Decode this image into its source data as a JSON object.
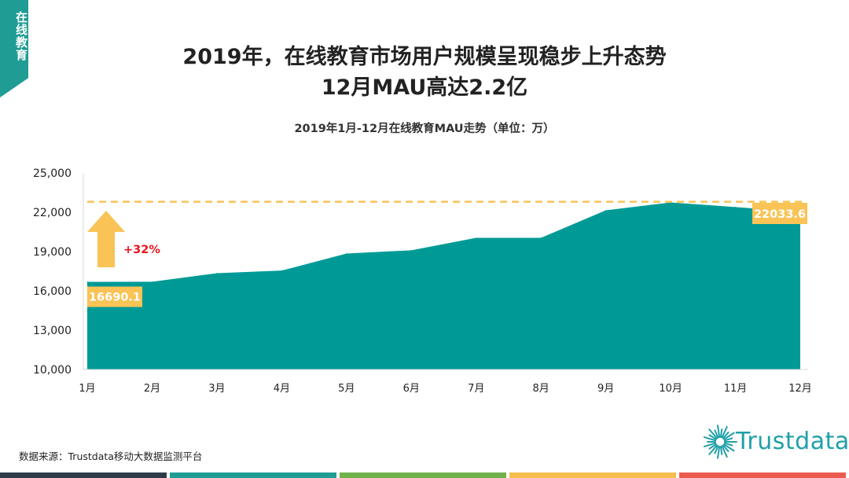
{
  "side_tab": "在线教育",
  "title_line1": "2019年，在线教育市场用户规模呈现稳步上升态势",
  "title_line2": "12月MAU高达2.2亿",
  "source": "数据来源：Trustdata移动大数据监测平台",
  "logo_text": "Trustdata",
  "colors": {
    "area": "#009a96",
    "accent": "#f9c356",
    "growth_text": "#e8141c",
    "side_tab": "#1f9c93",
    "bottom_bar": [
      "#2f3b48",
      "#1f9c93",
      "#6fb24c",
      "#f6be4d",
      "#ec5b4f"
    ]
  },
  "chart_data": {
    "type": "area",
    "title": "2019年1月-12月在线教育MAU走势（单位：万）",
    "categories": [
      "1月",
      "2月",
      "3月",
      "4月",
      "5月",
      "6月",
      "7月",
      "8月",
      "9月",
      "10月",
      "11月",
      "12月"
    ],
    "values": [
      16690.1,
      16700,
      17350,
      17550,
      18850,
      19100,
      20050,
      20050,
      22150,
      22750,
      22400,
      22033.6
    ],
    "y_ticks": [
      "10,000",
      "13,000",
      "16,000",
      "19,000",
      "22,000",
      "25,000"
    ],
    "ylim": [
      10000,
      25000
    ],
    "reference_line": 22800,
    "start_label": "16690.1",
    "end_label": "22033.6",
    "growth_label": "+32%"
  }
}
